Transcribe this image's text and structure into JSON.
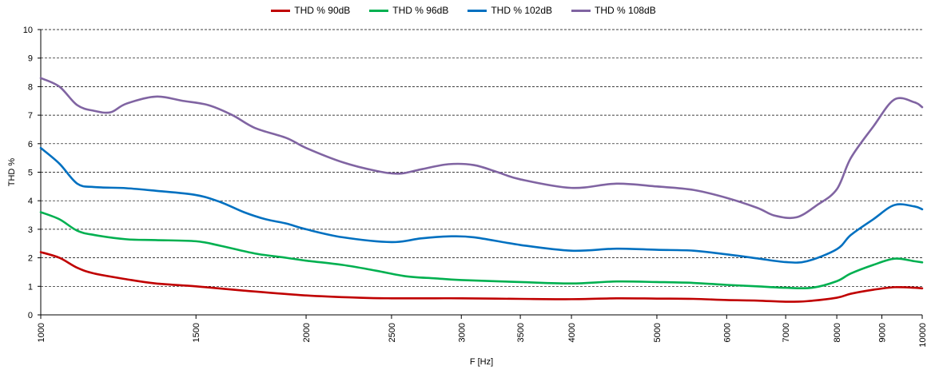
{
  "chart_data": {
    "type": "line",
    "title": "",
    "xlabel": "F [Hz]",
    "ylabel": "THD %",
    "xscale": "log",
    "xlim": [
      1000,
      10000
    ],
    "ylim": [
      0,
      10
    ],
    "grid": "horizontal dashed",
    "legend_position": "top",
    "yticks": [
      "0",
      "1",
      "2",
      "3",
      "4",
      "5",
      "6",
      "7",
      "8",
      "9",
      "10"
    ],
    "xticks": [
      {
        "value": 1000,
        "label": "1000"
      },
      {
        "value": 1500,
        "label": "1500"
      },
      {
        "value": 2000,
        "label": "2000"
      },
      {
        "value": 2500,
        "label": "2500"
      },
      {
        "value": 3000,
        "label": "3000"
      },
      {
        "value": 3500,
        "label": "3500"
      },
      {
        "value": 4000,
        "label": "4000"
      },
      {
        "value": 5000,
        "label": "5000"
      },
      {
        "value": 6000,
        "label": "6000"
      },
      {
        "value": 7000,
        "label": "7000"
      },
      {
        "value": 8000,
        "label": "8000"
      },
      {
        "value": 9000,
        "label": "9000"
      },
      {
        "value": 10000,
        "label": "10000"
      }
    ],
    "series": [
      {
        "name": "THD % 90dB",
        "color": "#C00000",
        "points": [
          [
            1000,
            2.2
          ],
          [
            1050,
            2.0
          ],
          [
            1100,
            1.65
          ],
          [
            1150,
            1.45
          ],
          [
            1250,
            1.25
          ],
          [
            1350,
            1.1
          ],
          [
            1500,
            1.0
          ],
          [
            1700,
            0.85
          ],
          [
            2000,
            0.68
          ],
          [
            2300,
            0.6
          ],
          [
            2500,
            0.58
          ],
          [
            2800,
            0.58
          ],
          [
            3000,
            0.58
          ],
          [
            3500,
            0.56
          ],
          [
            4000,
            0.55
          ],
          [
            4500,
            0.58
          ],
          [
            5000,
            0.57
          ],
          [
            5500,
            0.56
          ],
          [
            6000,
            0.52
          ],
          [
            6500,
            0.5
          ],
          [
            7000,
            0.46
          ],
          [
            7400,
            0.48
          ],
          [
            8000,
            0.6
          ],
          [
            8300,
            0.74
          ],
          [
            8800,
            0.88
          ],
          [
            9300,
            0.97
          ],
          [
            9800,
            0.95
          ],
          [
            10000,
            0.93
          ]
        ]
      },
      {
        "name": "THD % 96dB",
        "color": "#00B050",
        "points": [
          [
            1000,
            3.6
          ],
          [
            1050,
            3.35
          ],
          [
            1100,
            2.95
          ],
          [
            1150,
            2.8
          ],
          [
            1250,
            2.65
          ],
          [
            1350,
            2.62
          ],
          [
            1500,
            2.58
          ],
          [
            1600,
            2.42
          ],
          [
            1750,
            2.15
          ],
          [
            1900,
            2.0
          ],
          [
            2000,
            1.9
          ],
          [
            2200,
            1.75
          ],
          [
            2400,
            1.55
          ],
          [
            2600,
            1.35
          ],
          [
            2800,
            1.28
          ],
          [
            3000,
            1.22
          ],
          [
            3500,
            1.15
          ],
          [
            4000,
            1.1
          ],
          [
            4500,
            1.17
          ],
          [
            5000,
            1.15
          ],
          [
            5500,
            1.12
          ],
          [
            6000,
            1.05
          ],
          [
            6500,
            1.0
          ],
          [
            7000,
            0.95
          ],
          [
            7500,
            0.95
          ],
          [
            8000,
            1.18
          ],
          [
            8300,
            1.45
          ],
          [
            8800,
            1.75
          ],
          [
            9300,
            1.97
          ],
          [
            9800,
            1.88
          ],
          [
            10000,
            1.84
          ]
        ]
      },
      {
        "name": "THD % 102dB",
        "color": "#0070C0",
        "points": [
          [
            1000,
            5.85
          ],
          [
            1050,
            5.3
          ],
          [
            1100,
            4.6
          ],
          [
            1150,
            4.48
          ],
          [
            1250,
            4.44
          ],
          [
            1350,
            4.35
          ],
          [
            1500,
            4.2
          ],
          [
            1600,
            3.95
          ],
          [
            1700,
            3.6
          ],
          [
            1800,
            3.35
          ],
          [
            1900,
            3.2
          ],
          [
            2000,
            3.0
          ],
          [
            2200,
            2.72
          ],
          [
            2500,
            2.55
          ],
          [
            2700,
            2.68
          ],
          [
            2900,
            2.75
          ],
          [
            3100,
            2.72
          ],
          [
            3500,
            2.45
          ],
          [
            4000,
            2.25
          ],
          [
            4500,
            2.32
          ],
          [
            5000,
            2.28
          ],
          [
            5500,
            2.25
          ],
          [
            6000,
            2.12
          ],
          [
            6500,
            1.98
          ],
          [
            7000,
            1.85
          ],
          [
            7400,
            1.88
          ],
          [
            8000,
            2.3
          ],
          [
            8300,
            2.8
          ],
          [
            8800,
            3.35
          ],
          [
            9300,
            3.85
          ],
          [
            9800,
            3.8
          ],
          [
            10000,
            3.7
          ]
        ]
      },
      {
        "name": "THD % 108dB",
        "color": "#8064A2",
        "points": [
          [
            1000,
            8.3
          ],
          [
            1050,
            8.0
          ],
          [
            1100,
            7.35
          ],
          [
            1150,
            7.15
          ],
          [
            1200,
            7.1
          ],
          [
            1250,
            7.4
          ],
          [
            1350,
            7.65
          ],
          [
            1450,
            7.5
          ],
          [
            1550,
            7.35
          ],
          [
            1650,
            7.0
          ],
          [
            1750,
            6.55
          ],
          [
            1900,
            6.2
          ],
          [
            2000,
            5.85
          ],
          [
            2200,
            5.35
          ],
          [
            2400,
            5.05
          ],
          [
            2550,
            4.95
          ],
          [
            2700,
            5.1
          ],
          [
            2900,
            5.28
          ],
          [
            3100,
            5.25
          ],
          [
            3300,
            5.0
          ],
          [
            3500,
            4.75
          ],
          [
            4000,
            4.45
          ],
          [
            4500,
            4.6
          ],
          [
            5000,
            4.5
          ],
          [
            5500,
            4.38
          ],
          [
            6000,
            4.1
          ],
          [
            6500,
            3.75
          ],
          [
            6800,
            3.48
          ],
          [
            7200,
            3.42
          ],
          [
            7600,
            3.85
          ],
          [
            8000,
            4.4
          ],
          [
            8300,
            5.5
          ],
          [
            8800,
            6.6
          ],
          [
            9300,
            7.55
          ],
          [
            9800,
            7.45
          ],
          [
            10000,
            7.28
          ]
        ]
      }
    ]
  }
}
